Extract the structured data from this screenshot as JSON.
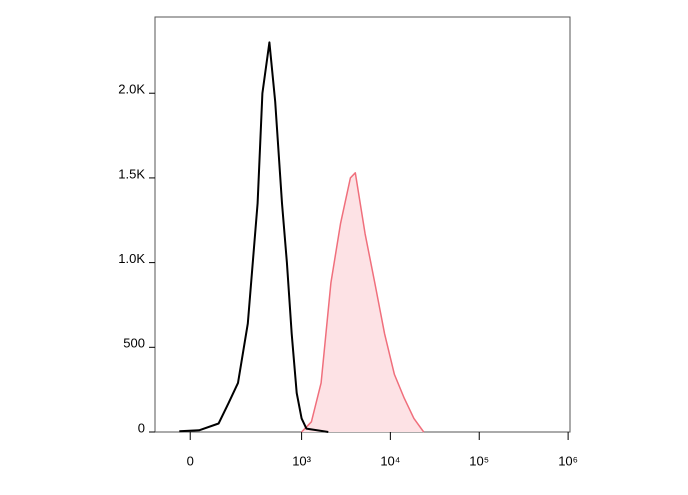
{
  "chart_data": {
    "type": "histogram-overlay",
    "series": [
      {
        "color": "#000000",
        "fill": null,
        "x": [
          -32,
          26,
          90,
          130,
          177,
          236,
          311,
          355,
          428,
          500,
          599,
          681,
          773,
          879,
          999,
          1134,
          2000
        ],
        "values": [
          5,
          10,
          50,
          170,
          290,
          640,
          1350,
          2000,
          2300,
          1950,
          1350,
          1000,
          580,
          230,
          80,
          20,
          0
        ]
      },
      {
        "color": "#f06f7c",
        "fill": "#fde2e5",
        "x": [
          999,
          1290,
          1660,
          2140,
          2750,
          3550,
          4030,
          5190,
          6680,
          8610,
          11100,
          14300,
          18400,
          23700
        ],
        "values": [
          0,
          60,
          290,
          880,
          1230,
          1500,
          1530,
          1170,
          880,
          580,
          340,
          200,
          80,
          0
        ]
      }
    ],
    "xlim": [
      -117,
      1050000
    ],
    "xticks": [
      0,
      {
        "value": 1000,
        "label": "10³"
      },
      {
        "value": 10000,
        "label": "10⁴"
      },
      {
        "value": 100000,
        "label": "10⁵"
      },
      {
        "value": 1000000,
        "label": "10⁶"
      }
    ],
    "ylim": [
      0,
      2450
    ],
    "yticks": [
      0,
      500,
      {
        "value": 1000,
        "label": "1.0K"
      },
      {
        "value": 1500,
        "label": "1.5K"
      },
      {
        "value": 2000,
        "label": "2.0K"
      }
    ]
  }
}
